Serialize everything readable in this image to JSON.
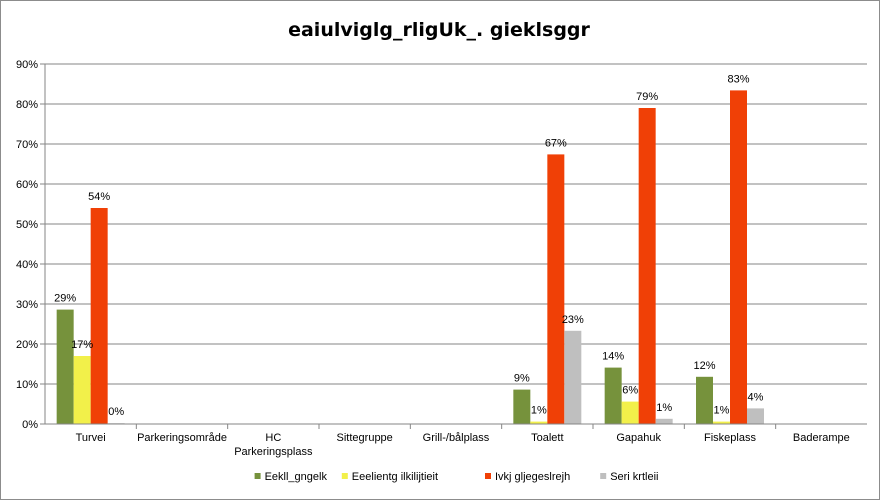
{
  "chart_data": {
    "type": "bar",
    "title": "eaiulviglg_rligUk_. gieklsggr",
    "xlabel": "",
    "ylabel": "",
    "ylim": [
      0,
      90
    ],
    "y_tick_step": 10,
    "y_ticks": [
      "0%",
      "10%",
      "20%",
      "30%",
      "40%",
      "50%",
      "60%",
      "70%",
      "80%",
      "90%"
    ],
    "grid": true,
    "legend_position": "bottom",
    "categories": [
      "Turvei",
      "Parkeringsområde",
      "HC\nParkeringsplass",
      "Sittegruppe",
      "Grill-/bålplass",
      "Toalett",
      "Gapahuk",
      "Fiskeplass",
      "Baderampe"
    ],
    "series": [
      {
        "name": "Eekll_gngelk",
        "color": "#76923c",
        "values": [
          28.6,
          null,
          null,
          null,
          null,
          8.6,
          14.1,
          11.8,
          null
        ],
        "labels": [
          "29%",
          null,
          null,
          null,
          null,
          "9%",
          "14%",
          "12%",
          null
        ]
      },
      {
        "name": "Eeelientg ilkilijtieit",
        "color": "#f2f04a",
        "values": [
          17.0,
          null,
          null,
          null,
          null,
          0.6,
          5.6,
          0.6,
          null
        ],
        "labels": [
          "17%",
          null,
          null,
          null,
          null,
          "1%",
          "6%",
          "1%",
          null
        ]
      },
      {
        "name": "Ivkj gljegeslrejh",
        "color": "#f04006",
        "values": [
          54.0,
          null,
          null,
          null,
          null,
          67.4,
          79.0,
          83.4,
          null
        ],
        "labels": [
          "54%",
          null,
          null,
          null,
          null,
          "67%",
          "79%",
          "83%",
          null
        ]
      },
      {
        "name": "Seri krtleii",
        "color": "#bfbfbf",
        "values": [
          0.2,
          null,
          null,
          null,
          null,
          23.3,
          1.3,
          3.9,
          null
        ],
        "labels": [
          "0%",
          null,
          null,
          null,
          null,
          "23%",
          "1%",
          "4%",
          null
        ]
      }
    ]
  }
}
